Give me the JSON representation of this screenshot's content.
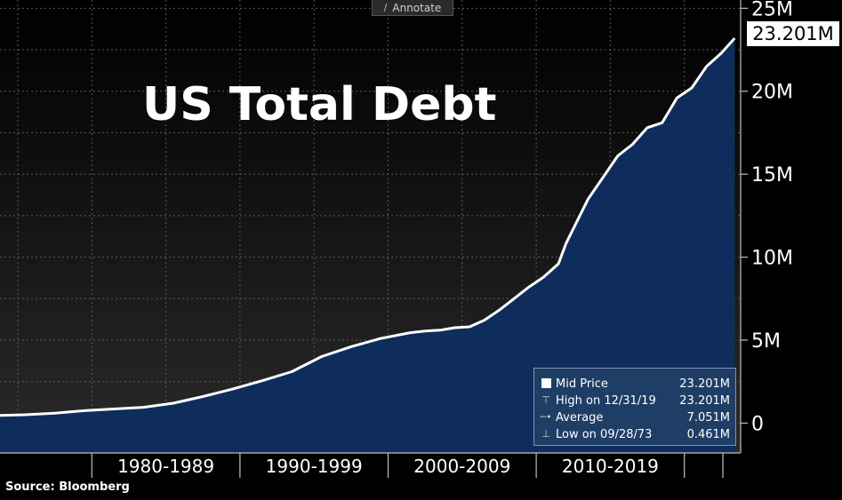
{
  "toolbar": {
    "annotate_label": "Annotate",
    "annotate_icon": "pencil-icon"
  },
  "source": "Source: Bloomberg",
  "last_value_tag": "23.201M",
  "legend": {
    "rows": [
      {
        "label": "Mid Price",
        "value": "23.201M",
        "marker": "square-icon"
      },
      {
        "label": "High on 12/31/19",
        "value": "23.201M",
        "marker": "high-marker-icon"
      },
      {
        "label": "Average",
        "value": "7.051M",
        "marker": "average-marker-icon"
      },
      {
        "label": "Low on 09/28/73",
        "value": "0.461M",
        "marker": "low-marker-icon"
      }
    ]
  },
  "colors": {
    "background_top": "#000000",
    "background_bottom": "#2a2a2a",
    "area_fill": "#0e2d5c",
    "line": "#ffffff",
    "grid": "#5a5a5a"
  },
  "chart_data": {
    "type": "area",
    "title": "US Total Debt",
    "xlabel": "",
    "ylabel": "",
    "y_ticks": [
      {
        "value": 0,
        "label": "0"
      },
      {
        "value": 5,
        "label": "5M"
      },
      {
        "value": 10,
        "label": "10M"
      },
      {
        "value": 15,
        "label": "15M"
      },
      {
        "value": 20,
        "label": "20M"
      },
      {
        "value": 25,
        "label": "25M"
      }
    ],
    "ylim": [
      -1.8,
      25.5
    ],
    "xlim": [
      1970.3,
      2020.3
    ],
    "x_category_labels": [
      "1980-1989",
      "1990-1999",
      "2000-2009",
      "2010-2019"
    ],
    "x_category_ranges": [
      [
        1976.5,
        1986.5
      ],
      [
        1986.5,
        1996.5
      ],
      [
        1996.5,
        2006.5
      ],
      [
        2006.5,
        2016.5
      ],
      [
        2016.5,
        2019.1
      ]
    ],
    "grid": true,
    "series": [
      {
        "name": "Mid Price",
        "x": [
          1970.3,
          1972,
          1974,
          1976,
          1978,
          1980,
          1982,
          1984,
          1986,
          1988,
          1990,
          1992,
          1994,
          1996,
          1998,
          1999,
          2000,
          2001,
          2002,
          2003,
          2004,
          2005,
          2006,
          2007,
          2008,
          2008.5,
          2009,
          2010,
          2011,
          2012,
          2013,
          2014,
          2015,
          2016,
          2017,
          2018,
          2019,
          2019.9
        ],
        "y": [
          0.46,
          0.5,
          0.6,
          0.75,
          0.85,
          0.95,
          1.2,
          1.6,
          2.05,
          2.55,
          3.1,
          4.0,
          4.6,
          5.1,
          5.45,
          5.55,
          5.6,
          5.75,
          5.8,
          6.2,
          6.8,
          7.5,
          8.2,
          8.8,
          9.6,
          10.8,
          11.7,
          13.5,
          14.8,
          16.1,
          16.8,
          17.8,
          18.1,
          19.6,
          20.2,
          21.5,
          22.3,
          23.2
        ]
      }
    ]
  }
}
